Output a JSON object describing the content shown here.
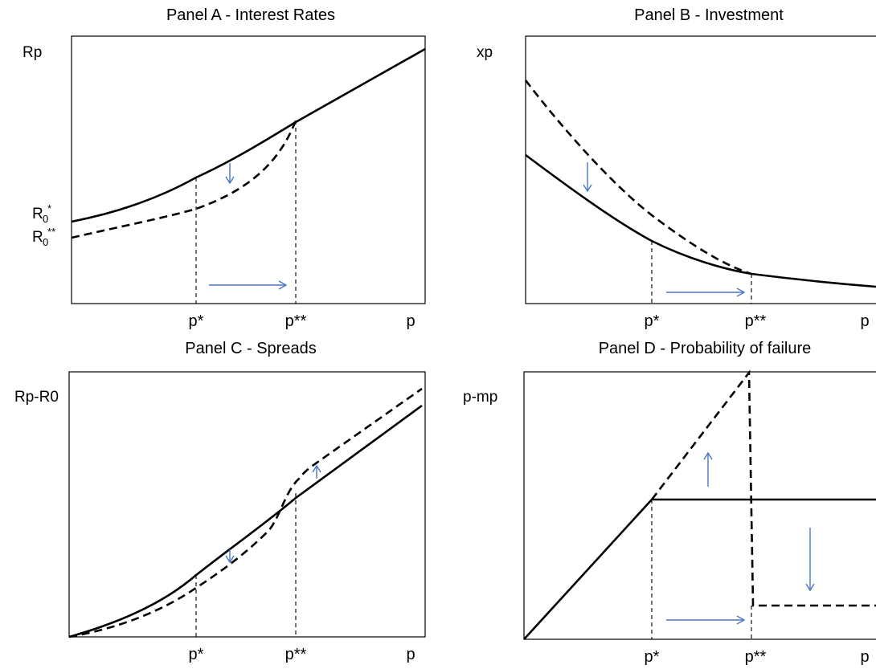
{
  "chart_data": [
    {
      "type": "line",
      "title": "Panel A - Interest Rates",
      "ylabel": "Rp",
      "xlabel": "p",
      "x_tick_labels": [
        "p*",
        "p**"
      ],
      "y_tick_labels": [
        {
          "base": "R",
          "sub": "0",
          "sup": "*"
        },
        {
          "base": "R",
          "sub": "0",
          "sup": "**"
        }
      ],
      "grid": false,
      "series": [
        {
          "style": "solid",
          "x": [
            0,
            0.2,
            0.4,
            0.6,
            0.8,
            1.0
          ],
          "y": [
            0.3,
            0.37,
            0.48,
            0.6,
            0.78,
            0.98
          ]
        },
        {
          "style": "dashed",
          "x": [
            0,
            0.2,
            0.4,
            0.5,
            0.58
          ],
          "y": [
            0.25,
            0.3,
            0.36,
            0.45,
            0.57
          ]
        }
      ]
    },
    {
      "type": "line",
      "title": "Panel B - Investment",
      "ylabel": "xp",
      "xlabel": "p",
      "x_tick_labels": [
        "p*",
        "p**"
      ],
      "grid": false,
      "series": [
        {
          "style": "solid",
          "x": [
            0,
            0.2,
            0.36,
            0.6,
            0.8,
            1.0
          ],
          "y": [
            0.58,
            0.4,
            0.24,
            0.12,
            0.08,
            0.06
          ]
        },
        {
          "style": "dashed",
          "x": [
            0,
            0.2,
            0.4,
            0.6
          ],
          "y": [
            0.9,
            0.6,
            0.32,
            0.12
          ]
        }
      ]
    },
    {
      "type": "line",
      "title": "Panel C - Spreads",
      "ylabel": "Rp-R0",
      "xlabel": "p",
      "x_tick_labels": [
        "p*",
        "p**"
      ],
      "grid": false,
      "series": [
        {
          "style": "solid",
          "x": [
            0,
            0.2,
            0.36,
            0.6,
            0.8,
            1.0
          ],
          "y": [
            0,
            0.1,
            0.25,
            0.5,
            0.7,
            0.92
          ]
        },
        {
          "style": "dashed",
          "x": [
            0,
            0.2,
            0.36,
            0.56,
            0.62,
            0.8,
            1.0
          ],
          "y": [
            0,
            0.08,
            0.2,
            0.44,
            0.66,
            0.8,
            0.96
          ]
        }
      ]
    },
    {
      "type": "line",
      "title": "Panel D - Probability of failure",
      "ylabel": "p-mp",
      "xlabel": "p",
      "x_tick_labels": [
        "p*",
        "p**"
      ],
      "grid": false,
      "series": [
        {
          "style": "solid",
          "x": [
            0,
            0.36,
            0.6,
            1.0
          ],
          "y": [
            0,
            0.53,
            0.53,
            0.53
          ]
        },
        {
          "style": "dashed",
          "x": [
            0.36,
            0.64,
            0.65,
            1.0
          ],
          "y": [
            0.53,
            0.98,
            0.14,
            0.14
          ]
        }
      ]
    }
  ]
}
